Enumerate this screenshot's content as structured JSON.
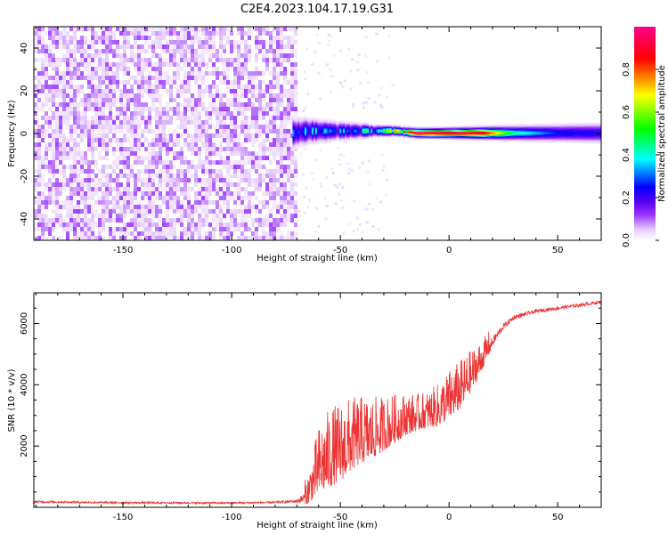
{
  "title": "C2E4.2023.104.17.19.G31",
  "colors": {
    "snr_line": "#ee3333",
    "colormap": [
      "#ffffff",
      "#e6ccff",
      "#9933ff",
      "#5500ee",
      "#0000ff",
      "#00ffff",
      "#00ff00",
      "#ffff00",
      "#ff0000",
      "#ff0088"
    ]
  },
  "chart_data": [
    {
      "type": "heatmap",
      "xlabel": "Height of straight line (km)",
      "ylabel": "Frequency (Hz)",
      "xlim": [
        -191,
        70
      ],
      "ylim": [
        -50,
        50
      ],
      "xticks": [
        -150,
        -100,
        -50,
        0,
        50
      ],
      "yticks": [
        -40,
        -20,
        0,
        20,
        40
      ],
      "colorbar": {
        "label": "Normalized spectral amplitude",
        "range": [
          0,
          1
        ],
        "ticks": [
          "0.0",
          "0.2",
          "0.4",
          "0.6",
          "0.8"
        ],
        "tick_values": [
          0.0,
          0.2,
          0.4,
          0.6,
          0.8
        ]
      },
      "noise_region_x": [
        -191,
        -71
      ],
      "signal_profile": {
        "x": [
          -72,
          -65,
          -55,
          -45,
          -35,
          -25,
          -15,
          0,
          15,
          30,
          50,
          70
        ],
        "center_frequency": [
          0,
          1,
          1,
          1,
          1,
          1,
          0,
          0,
          0,
          0,
          0,
          0
        ],
        "half_width": [
          6,
          5,
          4,
          3.5,
          2.5,
          2,
          2,
          2.2,
          2.5,
          3,
          3.5,
          4
        ],
        "peak_amplitude": [
          0.45,
          0.5,
          0.45,
          0.45,
          0.55,
          0.7,
          1.0,
          0.95,
          0.95,
          0.6,
          0.45,
          0.4
        ]
      }
    },
    {
      "type": "line",
      "xlabel": "Height of straight line (km)",
      "ylabel": "SNR (10 * v/v)",
      "xlim": [
        -191,
        70
      ],
      "ylim": [
        0,
        7000
      ],
      "xticks": [
        -150,
        -100,
        -50,
        0,
        50
      ],
      "yticks": [
        2000,
        4000,
        6000
      ],
      "series": [
        {
          "x": [
            -191,
            -150,
            -100,
            -80,
            -70,
            -65,
            -60,
            -55,
            -50,
            -45,
            -40,
            -35,
            -30,
            -25,
            -20,
            -15,
            -10,
            -5,
            0,
            5,
            10,
            15,
            20,
            25,
            30,
            40,
            50,
            60,
            70
          ],
          "y": [
            180,
            150,
            140,
            160,
            200,
            350,
            1000,
            1300,
            1500,
            1800,
            2000,
            2100,
            2300,
            2500,
            2700,
            2800,
            2900,
            3000,
            3300,
            3600,
            4100,
            4700,
            5400,
            5900,
            6200,
            6400,
            6500,
            6600,
            6700
          ],
          "spread": [
            70,
            60,
            60,
            70,
            100,
            500,
            1100,
            1300,
            1300,
            1200,
            1100,
            1000,
            900,
            800,
            700,
            600,
            600,
            700,
            800,
            800,
            700,
            500,
            350,
            200,
            150,
            120,
            120,
            110,
            110
          ]
        }
      ]
    }
  ]
}
